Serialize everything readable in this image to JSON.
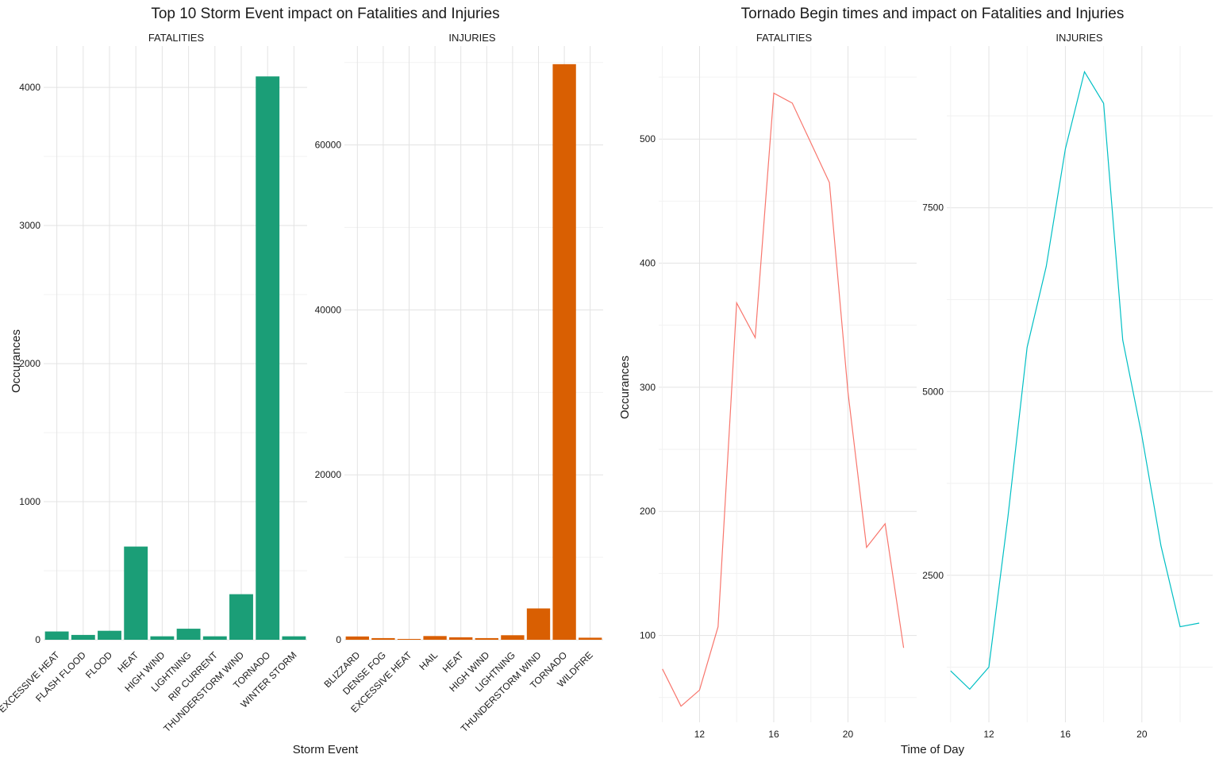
{
  "left_figure": {
    "title": "Top 10 Storm Event impact on Fatalities and Injuries",
    "xlabel": "Storm Event",
    "ylabel": "Occurances"
  },
  "right_figure": {
    "title": "Tornado Begin times and impact on Fatalities and Injuries",
    "xlabel": "Time of Day",
    "ylabel": "Occurances"
  },
  "chart_data": [
    {
      "type": "bar",
      "panel": "FATALITIES",
      "color": "#1b9e77",
      "categories": [
        "EXCESSIVE HEAT",
        "FLASH FLOOD",
        "FLOOD",
        "HEAT",
        "HIGH WIND",
        "LIGHTNING",
        "RIP CURRENT",
        "THUNDERSTORM WIND",
        "TORNADO",
        "WINTER STORM"
      ],
      "values": [
        60,
        35,
        65,
        675,
        25,
        80,
        25,
        330,
        4080,
        25
      ],
      "ylim": [
        0,
        4300
      ],
      "yticks": [
        0,
        1000,
        2000,
        3000,
        4000
      ],
      "grid": true
    },
    {
      "type": "bar",
      "panel": "INJURIES",
      "color": "#d95f02",
      "categories": [
        "BLIZZARD",
        "DENSE FOG",
        "EXCESSIVE HEAT",
        "HAIL",
        "HEAT",
        "HIGH WIND",
        "LIGHTNING",
        "THUNDERSTORM WIND",
        "TORNADO",
        "WILDFIRE"
      ],
      "values": [
        400,
        200,
        100,
        450,
        300,
        200,
        550,
        3800,
        69800,
        250
      ],
      "ylim": [
        0,
        72000
      ],
      "yticks": [
        0,
        20000,
        40000,
        60000
      ],
      "grid": true
    },
    {
      "type": "line",
      "panel": "FATALITIES",
      "color": "#f8766d",
      "x": [
        10,
        11,
        12,
        13,
        14,
        15,
        16,
        17,
        18,
        19,
        20,
        21,
        22,
        23
      ],
      "y": [
        73,
        43,
        56,
        107,
        368,
        340,
        537,
        529,
        497,
        465,
        296,
        171,
        190,
        90
      ],
      "xlim": [
        9.8,
        23.7
      ],
      "ylim": [
        30,
        575
      ],
      "xticks": [
        12,
        16,
        20
      ],
      "yticks": [
        100,
        200,
        300,
        400,
        500
      ],
      "grid": true
    },
    {
      "type": "line",
      "panel": "INJURIES",
      "color": "#00bfc4",
      "x": [
        10,
        11,
        12,
        13,
        14,
        15,
        16,
        17,
        18,
        19,
        20,
        21,
        22,
        23
      ],
      "y": [
        1200,
        950,
        1250,
        3300,
        5600,
        6700,
        8300,
        9350,
        8920,
        5700,
        4400,
        2900,
        1800,
        1850
      ],
      "xlim": [
        9.8,
        23.7
      ],
      "ylim": [
        500,
        9700
      ],
      "xticks": [
        12,
        16,
        20
      ],
      "yticks": [
        2500,
        5000,
        7500
      ],
      "grid": true
    }
  ]
}
